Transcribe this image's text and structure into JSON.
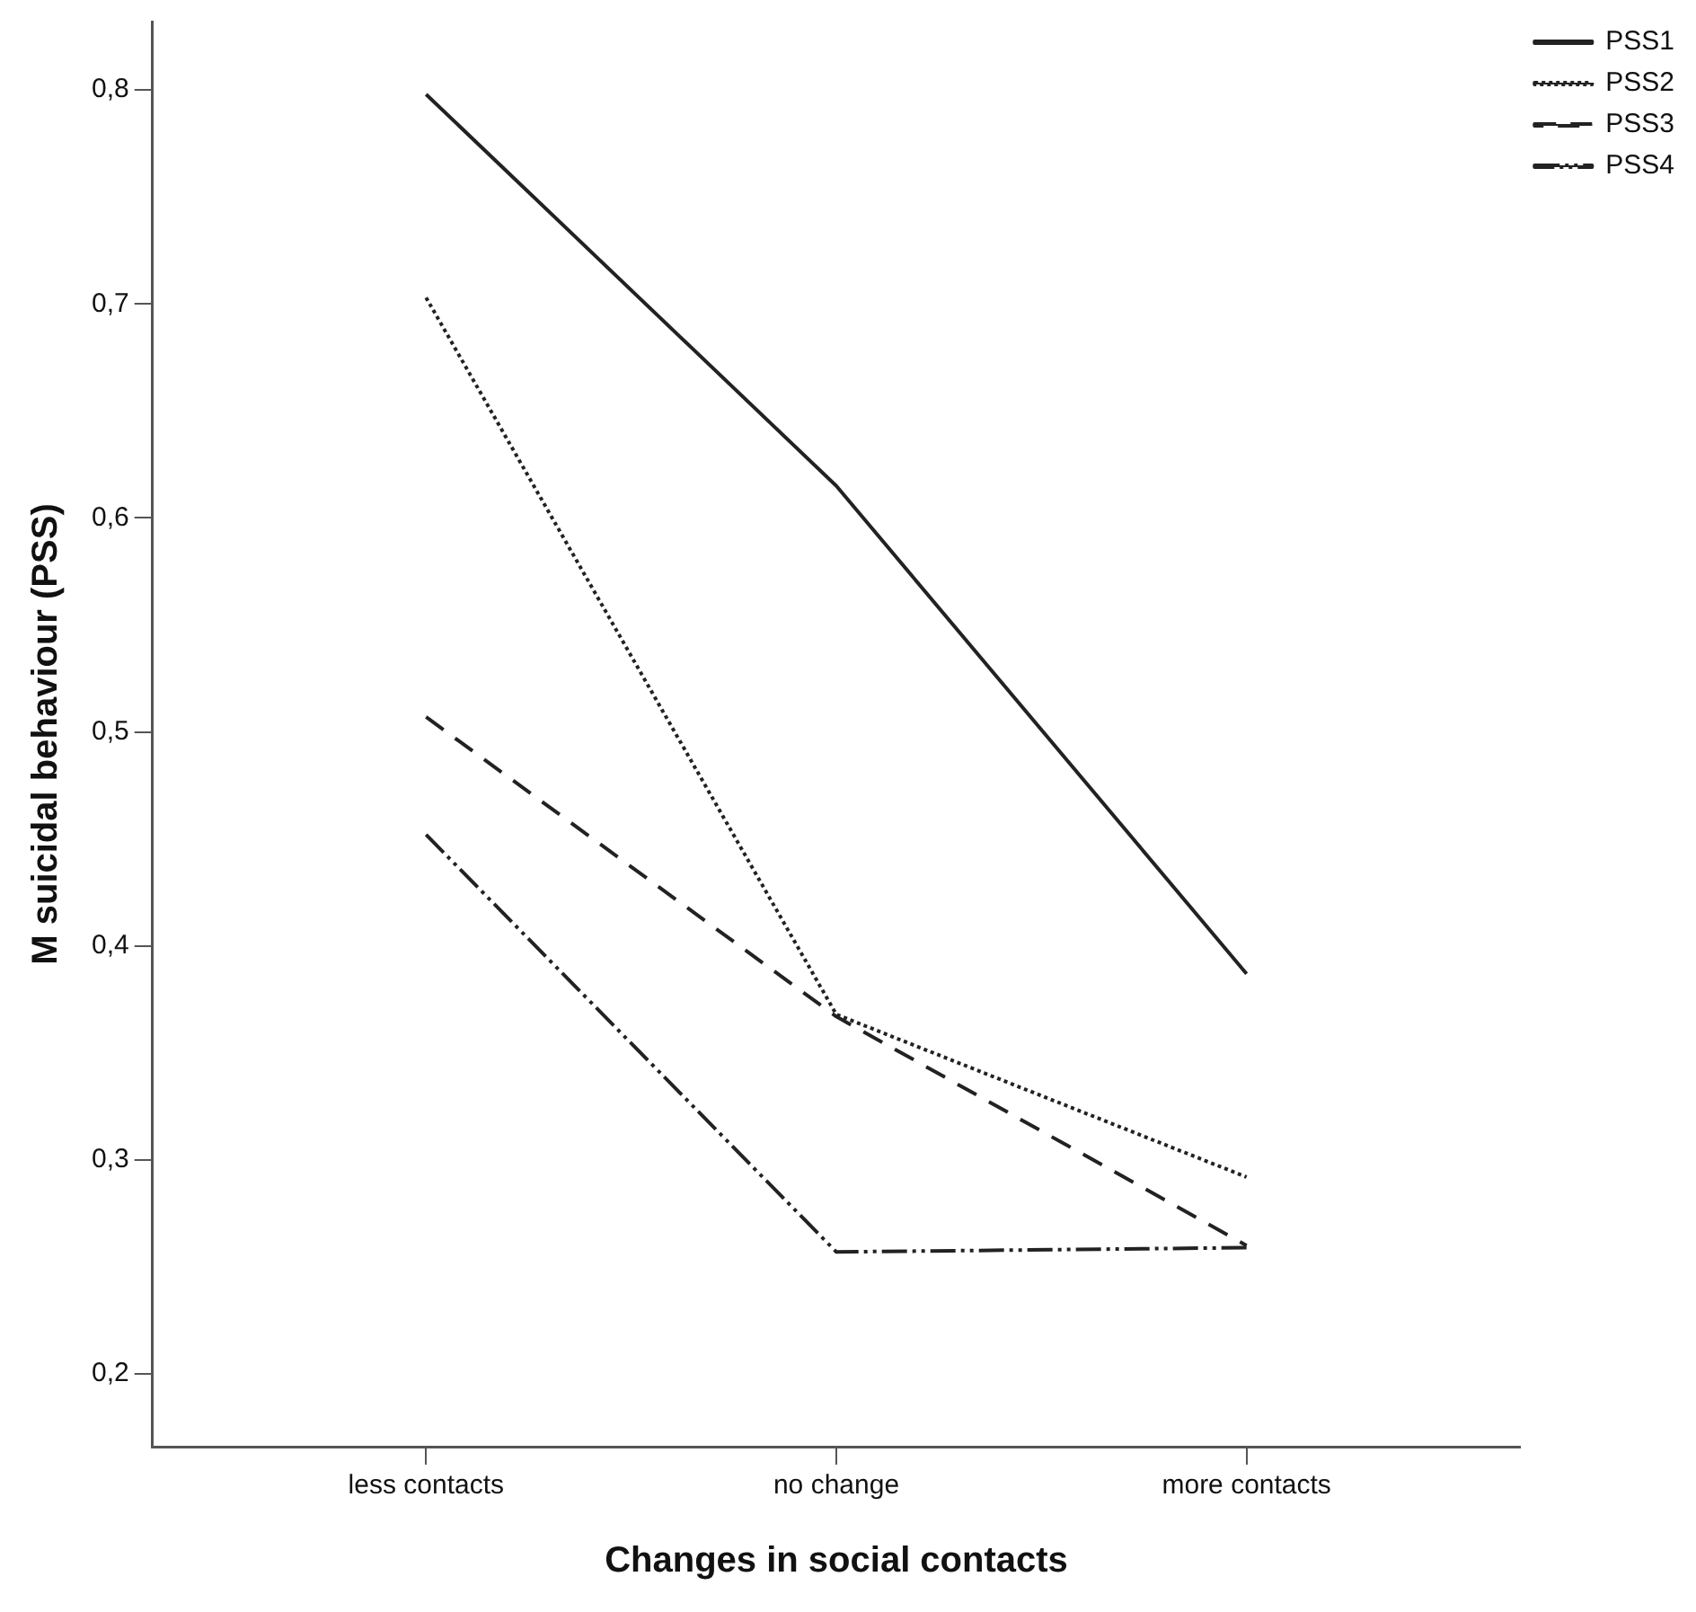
{
  "chart_data": {
    "type": "line",
    "xlabel": "Changes in social contacts",
    "ylabel": "M suicidal behaviour (PSS)",
    "categories": [
      "less contacts",
      "no change",
      "more contacts"
    ],
    "series": [
      {
        "name": "PSS1",
        "color": "#222222",
        "line_style": "solid",
        "values": [
          0.798,
          0.615,
          0.387
        ]
      },
      {
        "name": "PSS2",
        "color": "#222222",
        "line_style": "dotted",
        "values": [
          0.703,
          0.368,
          0.292
        ]
      },
      {
        "name": "PSS3",
        "color": "#222222",
        "line_style": "dashed",
        "values": [
          0.507,
          0.367,
          0.26
        ]
      },
      {
        "name": "PSS4",
        "color": "#222222",
        "line_style": "dashdot",
        "values": [
          0.452,
          0.257,
          0.259
        ]
      }
    ],
    "ylim": [
      0.166,
      0.832
    ],
    "yticks": [
      {
        "value": 0.2,
        "label": "0,2"
      },
      {
        "value": 0.3,
        "label": "0,3"
      },
      {
        "value": 0.4,
        "label": "0,4"
      },
      {
        "value": 0.5,
        "label": "0,5"
      },
      {
        "value": 0.6,
        "label": "0,6"
      },
      {
        "value": 0.7,
        "label": "0,7"
      },
      {
        "value": 0.8,
        "label": "0,8"
      }
    ],
    "grid": false,
    "legend": "top right",
    "marker": "none"
  }
}
